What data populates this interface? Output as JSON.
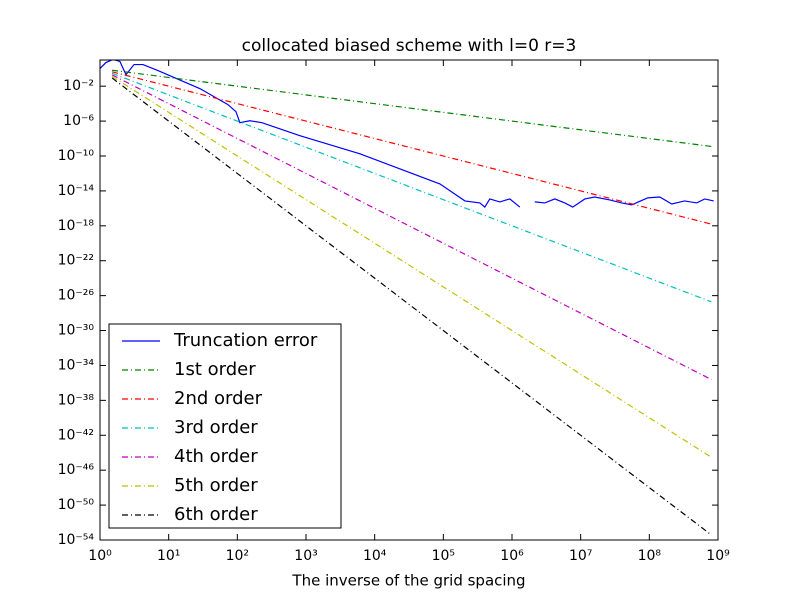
{
  "chart_data": {
    "type": "line",
    "title": "collocated biased scheme with l=0 r=3",
    "x_label": "The inverse of the grid spacing",
    "xscale": "log",
    "yscale": "log",
    "xlim": [
      1,
      1000000000.0
    ],
    "ylim": [
      1e-54,
      10
    ],
    "xticks": [
      {
        "value": 1,
        "label": "10⁰"
      },
      {
        "value": 10,
        "label": "10¹"
      },
      {
        "value": 100,
        "label": "10²"
      },
      {
        "value": 1000,
        "label": "10³"
      },
      {
        "value": 10000.0,
        "label": "10⁴"
      },
      {
        "value": 100000.0,
        "label": "10⁵"
      },
      {
        "value": 1000000.0,
        "label": "10⁶"
      },
      {
        "value": 10000000.0,
        "label": "10⁷"
      },
      {
        "value": 100000000.0,
        "label": "10⁸"
      },
      {
        "value": 1000000000.0,
        "label": "10⁹"
      }
    ],
    "yticks": [
      {
        "value": 1e-54,
        "label": "10⁻⁵⁴"
      },
      {
        "value": 1e-50,
        "label": "10⁻⁵⁰"
      },
      {
        "value": 1e-46,
        "label": "10⁻⁴⁶"
      },
      {
        "value": 1e-42,
        "label": "10⁻⁴²"
      },
      {
        "value": 1e-38,
        "label": "10⁻³⁸"
      },
      {
        "value": 1e-34,
        "label": "10⁻³⁴"
      },
      {
        "value": 1e-30,
        "label": "10⁻³⁰"
      },
      {
        "value": 1e-26,
        "label": "10⁻²⁶"
      },
      {
        "value": 1e-22,
        "label": "10⁻²²"
      },
      {
        "value": 1e-18,
        "label": "10⁻¹⁸"
      },
      {
        "value": 1e-14,
        "label": "10⁻¹⁴"
      },
      {
        "value": 1e-10,
        "label": "10⁻¹⁰"
      },
      {
        "value": 1e-06,
        "label": "10⁻⁶"
      },
      {
        "value": 0.01,
        "label": "10⁻²"
      }
    ],
    "legend": "lower left",
    "series": [
      {
        "name": "Truncation error",
        "color": "#0000ff",
        "linestyle": "solid",
        "x": [
          1,
          1.22,
          1.55,
          1.95,
          2.39,
          3.13,
          4.23,
          6.98,
          28.6,
          72.9,
          95.5,
          109,
          152,
          228,
          815,
          6100,
          89000,
          206000,
          340000,
          402000,
          475000,
          664000,
          929000,
          1300000,
          1700000,
          2150000,
          3000000,
          4200000,
          5870000,
          7670000,
          11500000,
          16000000,
          26500000,
          39600000,
          55500000,
          94800000,
          142000000,
          212000000,
          327000000,
          490000000,
          640000000,
          865000000
        ],
        "values": [
          1.05,
          5.1,
          11.5,
          6.8,
          0.21,
          3.0,
          3.0,
          0.62,
          0.0052,
          7.8e-05,
          1.2e-05,
          6.6e-07,
          1.1e-06,
          6.6e-07,
          2.1e-08,
          1.8e-10,
          6.3e-14,
          7.1e-16,
          4.2e-16,
          1.4e-16,
          1.2e-15,
          5.5e-16,
          1.2e-15,
          1.4e-16,
          null,
          5.5e-16,
          4.2e-16,
          1.2e-15,
          4.2e-16,
          1.4e-16,
          1.2e-15,
          2e-15,
          9.3e-16,
          4.2e-16,
          2.5e-16,
          1.6e-15,
          2e-15,
          3.2e-16,
          7.1e-16,
          4.2e-16,
          1.2e-15,
          7.1e-16
        ]
      },
      {
        "name": "1st order",
        "color": "#008000",
        "linestyle": "dashdot",
        "x": [
          1.5,
          800000000
        ],
        "values": [
          0.667,
          1.25e-09
        ]
      },
      {
        "name": "2nd order",
        "color": "#ff0000",
        "linestyle": "dashdot",
        "x": [
          1.5,
          800000000
        ],
        "values": [
          0.444,
          1.56e-18
        ]
      },
      {
        "name": "3rd order",
        "color": "#00bfbf",
        "linestyle": "dashdot",
        "x": [
          1.5,
          800000000
        ],
        "values": [
          0.296,
          1.95e-27
        ]
      },
      {
        "name": "4th order",
        "color": "#bf00bf",
        "linestyle": "dashdot",
        "x": [
          1.5,
          800000000
        ],
        "values": [
          0.198,
          2.44e-36
        ]
      },
      {
        "name": "5th order",
        "color": "#bfbf00",
        "linestyle": "dashdot",
        "x": [
          1.5,
          800000000
        ],
        "values": [
          0.132,
          3.05e-45
        ]
      },
      {
        "name": "6th order",
        "color": "#000000",
        "linestyle": "dashdot",
        "x": [
          1.5,
          800000000
        ],
        "values": [
          0.0878,
          3.81e-54
        ]
      }
    ]
  }
}
